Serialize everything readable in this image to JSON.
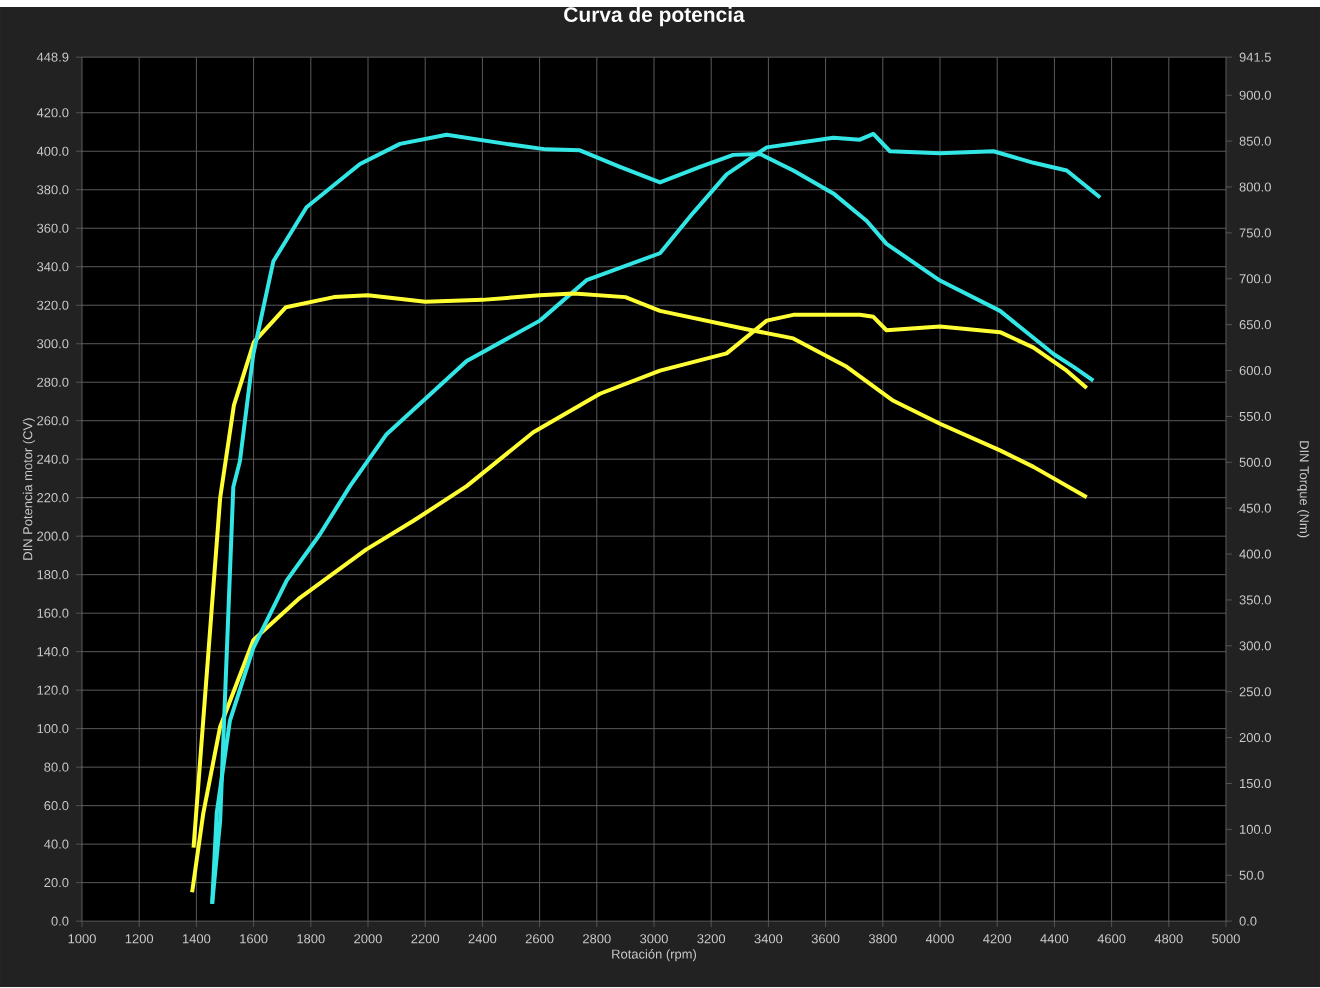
{
  "chart_data": {
    "type": "line",
    "title": "Curva de potencia",
    "xlabel": "Rotación (rpm)",
    "ylabel": "DIN Potencia motor (CV)",
    "y2label": "DIN Torque (Nm)",
    "xlim": [
      1000,
      5000
    ],
    "xticks": [
      1000,
      1200,
      1400,
      1600,
      1800,
      2000,
      2200,
      2400,
      2600,
      2800,
      3000,
      3200,
      3400,
      3600,
      3800,
      4000,
      4200,
      4400,
      4600,
      4800,
      5000
    ],
    "ylim": [
      0,
      448.9
    ],
    "yticks": [
      {
        "value": 0,
        "label": "0.0"
      },
      {
        "value": 20,
        "label": "20.0"
      },
      {
        "value": 40,
        "label": "40.0"
      },
      {
        "value": 60,
        "label": "60.0"
      },
      {
        "value": 80,
        "label": "80.0"
      },
      {
        "value": 100,
        "label": "100.0"
      },
      {
        "value": 120,
        "label": "120.0"
      },
      {
        "value": 140,
        "label": "140.0"
      },
      {
        "value": 160,
        "label": "160.0"
      },
      {
        "value": 180,
        "label": "180.0"
      },
      {
        "value": 200,
        "label": "200.0"
      },
      {
        "value": 220,
        "label": "220.0"
      },
      {
        "value": 240,
        "label": "240.0"
      },
      {
        "value": 260,
        "label": "260.0"
      },
      {
        "value": 280,
        "label": "280.0"
      },
      {
        "value": 300,
        "label": "300.0"
      },
      {
        "value": 320,
        "label": "320.0"
      },
      {
        "value": 340,
        "label": "340.0"
      },
      {
        "value": 360,
        "label": "360.0"
      },
      {
        "value": 380,
        "label": "380.0"
      },
      {
        "value": 400,
        "label": "400.0"
      },
      {
        "value": 420,
        "label": "420.0"
      },
      448.9
    ],
    "y2lim": [
      0,
      941.5
    ],
    "y2ticks": [
      {
        "value": 0,
        "label": "0.0"
      },
      {
        "value": 50,
        "label": "50.0"
      },
      {
        "value": 100,
        "label": "100.0"
      },
      {
        "value": 150,
        "label": "150.0"
      },
      {
        "value": 200,
        "label": "200.0"
      },
      {
        "value": 250,
        "label": "250.0"
      },
      {
        "value": 300,
        "label": "300.0"
      },
      {
        "value": 350,
        "label": "350.0"
      },
      {
        "value": 400,
        "label": "400.0"
      },
      {
        "value": 450,
        "label": "450.0"
      },
      {
        "value": 500,
        "label": "500.0"
      },
      {
        "value": 550,
        "label": "550.0"
      },
      {
        "value": 600,
        "label": "600.0"
      },
      {
        "value": 650,
        "label": "650.0"
      },
      {
        "value": 700,
        "label": "700.0"
      },
      {
        "value": 750,
        "label": "750.0"
      },
      {
        "value": 800,
        "label": "800.0"
      },
      {
        "value": 850,
        "label": "850.0"
      },
      {
        "value": 900,
        "label": "900.0"
      },
      941.5
    ],
    "grid": true,
    "series": [
      {
        "color": "#ffff33",
        "x": [
          1385,
          1424,
          1483,
          1599,
          1762,
          1993,
          2159,
          2345,
          2578,
          2811,
          3021,
          3254,
          3394,
          3487,
          3720,
          3767,
          3813,
          4000,
          4210,
          4327,
          4443,
          4513
        ],
        "values": [
          15,
          56,
          101,
          146,
          168,
          193,
          208,
          226,
          254,
          274,
          286,
          295,
          312,
          315,
          315,
          314,
          307,
          309,
          306,
          298,
          286,
          277
        ]
      },
      {
        "color": "#33e6e6",
        "x": [
          1455,
          1471,
          1517,
          1599,
          1716,
          1832,
          1937,
          2065,
          2345,
          2601,
          2764,
          3021,
          3137,
          3254,
          3394,
          3627,
          3720,
          3767,
          3825,
          4000,
          4187,
          4327,
          4443,
          4560
        ],
        "values": [
          9,
          56,
          104,
          142,
          177,
          201,
          226,
          253,
          291,
          312,
          333,
          347,
          368,
          388,
          402,
          407,
          406,
          409,
          400,
          399,
          400,
          394,
          390,
          376
        ]
      },
      {
        "axis": "y2",
        "color": "#ffff33",
        "x": [
          1390,
          1483,
          1531,
          1601,
          1713,
          1881,
          2000,
          2200,
          2400,
          2600,
          2720,
          2900,
          3021,
          3324,
          3487,
          3674,
          3837,
          4000,
          4210,
          4327,
          4513
        ],
        "values": [
          80,
          461,
          562,
          631,
          669,
          680,
          682,
          675,
          677,
          682,
          684,
          680,
          665,
          645,
          635,
          604,
          567,
          542,
          513,
          495,
          462
        ]
      },
      {
        "axis": "y2",
        "color": "#33e6e6",
        "x": [
          1455,
          1483,
          1529,
          1552,
          1599,
          1669,
          1785,
          1972,
          2112,
          2275,
          2483,
          2622,
          2741,
          2881,
          3021,
          3161,
          3277,
          3371,
          3487,
          3627,
          3744,
          3813,
          4000,
          4210,
          4397,
          4467,
          4536
        ],
        "values": [
          19,
          109,
          473,
          501,
          618,
          719,
          778,
          825,
          847,
          857,
          847,
          841,
          840,
          822,
          805,
          822,
          835,
          836,
          818,
          793,
          763,
          738,
          698,
          665,
          618,
          604,
          589
        ]
      }
    ]
  }
}
